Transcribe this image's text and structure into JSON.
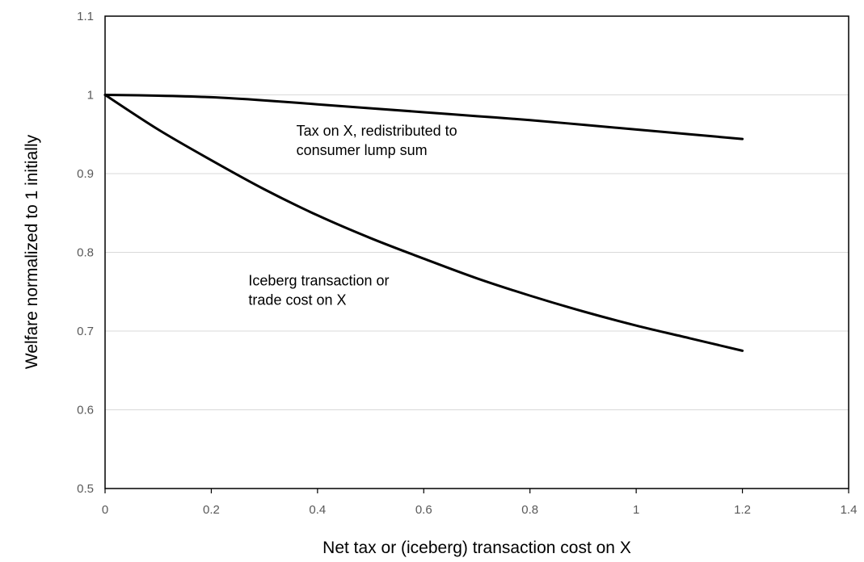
{
  "chart_data": {
    "type": "line",
    "title": "",
    "xlabel": "Net tax or (iceberg) transaction cost on X",
    "ylabel": "Welfare normalized to 1 initially",
    "xlim": [
      0,
      1.4
    ],
    "ylim": [
      0.5,
      1.1
    ],
    "xticks": [
      "0",
      "0.2",
      "0.4",
      "0.6",
      "0.8",
      "1",
      "1.2",
      "1.4"
    ],
    "yticks": [
      "0.5",
      "0.6",
      "0.7",
      "0.8",
      "0.9",
      "1",
      "1.1"
    ],
    "grid": "horizontal",
    "legend": "none",
    "series": [
      {
        "x": [
          0,
          0.1,
          0.2,
          0.3,
          0.4,
          0.5,
          0.6,
          0.7,
          0.8,
          0.9,
          1.0,
          1.1,
          1.2
        ],
        "values": [
          1.0,
          0.999,
          0.997,
          0.993,
          0.988,
          0.983,
          0.978,
          0.973,
          0.968,
          0.962,
          0.956,
          0.95,
          0.944
        ]
      },
      {
        "x": [
          0,
          0.1,
          0.2,
          0.3,
          0.4,
          0.5,
          0.6,
          0.7,
          0.8,
          0.9,
          1.0,
          1.1,
          1.2
        ],
        "values": [
          1.0,
          0.956,
          0.917,
          0.88,
          0.847,
          0.818,
          0.792,
          0.767,
          0.745,
          0.725,
          0.707,
          0.691,
          0.675
        ]
      }
    ],
    "annotations": [
      {
        "lines": [
          "Tax on X, redistributed to",
          "consumer lump sum"
        ],
        "x": 0.36,
        "y": 0.948
      },
      {
        "lines": [
          "Iceberg transaction or",
          "trade cost on X"
        ],
        "x": 0.27,
        "y": 0.758
      }
    ],
    "line_color": "#000000"
  }
}
